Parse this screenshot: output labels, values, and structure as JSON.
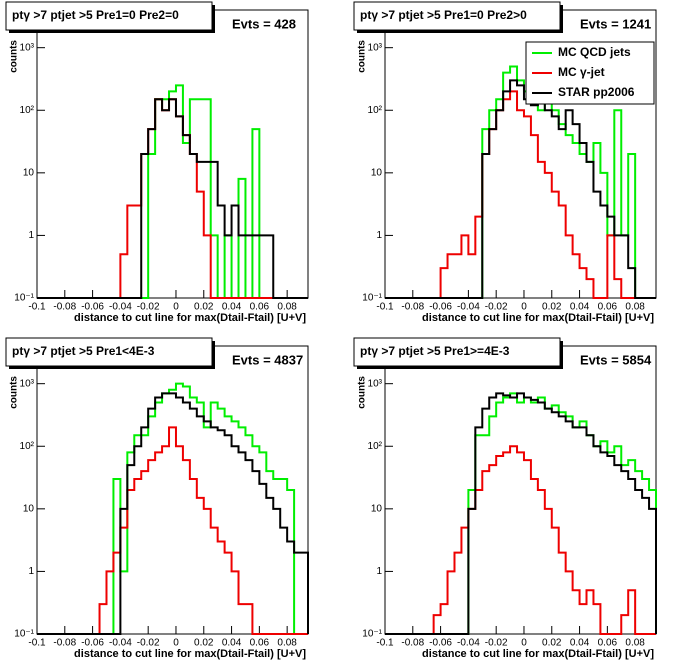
{
  "chart_data": [
    {
      "type": "histogram",
      "title": "ptγ >7  ptjet >5 Pre1=0 Pre2=0",
      "annotation": "Evts = 428",
      "xlabel": "distance to cut line for max(Dtail-Ftail) [U+V]",
      "ylabel": "counts",
      "log_y": true,
      "xlim": [
        -0.1,
        0.095
      ],
      "ylim": [
        0.1,
        4000
      ],
      "xticks": [
        -0.1,
        -0.08,
        -0.06,
        -0.04,
        -0.02,
        0,
        0.02,
        0.04,
        0.06,
        0.08
      ],
      "yticks": [
        {
          "value": 0.1,
          "label": "10⁻¹"
        },
        1,
        10,
        {
          "value": 100,
          "label": "10²"
        },
        {
          "value": 1000,
          "label": "10³"
        }
      ],
      "bins": [
        -0.1,
        -0.095,
        -0.09,
        -0.085,
        -0.08,
        -0.075,
        -0.07,
        -0.065,
        -0.06,
        -0.055,
        -0.05,
        -0.045,
        -0.04,
        -0.035,
        -0.03,
        -0.025,
        -0.02,
        -0.015,
        -0.01,
        -0.005,
        0,
        0.005,
        0.01,
        0.015,
        0.02,
        0.025,
        0.03,
        0.035,
        0.04,
        0.045,
        0.05,
        0.055,
        0.06,
        0.065,
        0.07,
        0.075,
        0.08,
        0.085,
        0.09,
        0.095
      ],
      "series": [
        {
          "color": "#00ee00",
          "values": [
            0,
            0,
            0,
            0,
            0,
            0,
            0,
            0,
            0,
            0,
            0,
            0,
            0,
            0,
            0,
            0,
            20,
            150,
            150,
            200,
            250,
            30,
            150,
            150,
            150,
            1,
            0.1,
            1,
            0.1,
            8,
            0.1,
            50,
            0.1,
            0,
            0,
            0,
            0,
            0,
            0
          ]
        },
        {
          "color": "#ee0000",
          "values": [
            0,
            0,
            0,
            0,
            0,
            0,
            0,
            0,
            0,
            0,
            0,
            0,
            0.5,
            3,
            3,
            20,
            50,
            150,
            100,
            150,
            80,
            40,
            20,
            5,
            1,
            0,
            0,
            0,
            0,
            0,
            0,
            0,
            0,
            0,
            0,
            0,
            0,
            0,
            0
          ]
        },
        {
          "color": "#000000",
          "values": [
            0,
            0,
            0,
            0,
            0,
            0,
            0,
            0,
            0,
            0,
            0,
            0,
            0,
            0,
            0,
            20,
            50,
            150,
            100,
            150,
            80,
            40,
            20,
            15,
            15,
            15,
            3,
            1,
            3,
            1,
            1,
            1,
            1,
            1,
            0,
            0,
            0,
            0,
            0
          ]
        }
      ]
    },
    {
      "type": "histogram",
      "title": "ptγ >7  ptjet >5 Pre1=0 Pre2>0",
      "annotation": "Evts = 1241",
      "xlabel": "distance to cut line for max(Dtail-Ftail) [U+V]",
      "ylabel": "counts",
      "log_y": true,
      "legend": "top-right",
      "xlim": [
        -0.1,
        0.095
      ],
      "ylim": [
        0.1,
        4000
      ],
      "xticks": [
        -0.1,
        -0.08,
        -0.06,
        -0.04,
        -0.02,
        0,
        0.02,
        0.04,
        0.06,
        0.08
      ],
      "yticks": [
        {
          "value": 0.1,
          "label": "10⁻¹"
        },
        1,
        10,
        {
          "value": 100,
          "label": "10²"
        },
        {
          "value": 1000,
          "label": "10³"
        }
      ],
      "bins": [
        -0.1,
        -0.095,
        -0.09,
        -0.085,
        -0.08,
        -0.075,
        -0.07,
        -0.065,
        -0.06,
        -0.055,
        -0.05,
        -0.045,
        -0.04,
        -0.035,
        -0.03,
        -0.025,
        -0.02,
        -0.015,
        -0.01,
        -0.005,
        0,
        0.005,
        0.01,
        0.015,
        0.02,
        0.025,
        0.03,
        0.035,
        0.04,
        0.045,
        0.05,
        0.055,
        0.06,
        0.065,
        0.07,
        0.075,
        0.08,
        0.085,
        0.09,
        0.095
      ],
      "series": [
        {
          "name": "MC QCD jets",
          "color": "#00ee00",
          "values": [
            0,
            0,
            0,
            0,
            0,
            0,
            0,
            0,
            0,
            0,
            0,
            0,
            0,
            0,
            50,
            100,
            150,
            400,
            500,
            300,
            200,
            150,
            100,
            150,
            100,
            60,
            40,
            30,
            20,
            15,
            30,
            10,
            1,
            100,
            1,
            20,
            0,
            0,
            0
          ]
        },
        {
          "name": "MC γ-jet",
          "color": "#ee0000",
          "values": [
            0,
            0,
            0,
            0,
            0,
            0,
            0,
            0,
            0.3,
            0.5,
            0.5,
            1,
            0.5,
            2,
            20,
            50,
            100,
            150,
            200,
            100,
            80,
            40,
            15,
            10,
            5,
            3,
            1,
            0.5,
            0.3,
            0.2,
            0,
            0,
            1,
            0.2,
            0,
            0,
            0,
            0,
            0
          ]
        },
        {
          "name": "STAR pp2006",
          "color": "#000000",
          "values": [
            0,
            0,
            0,
            0,
            0,
            0,
            0,
            0,
            0,
            0,
            0,
            0,
            0,
            0,
            20,
            50,
            100,
            200,
            300,
            250,
            150,
            120,
            150,
            100,
            80,
            50,
            100,
            60,
            30,
            15,
            5,
            3,
            2,
            1,
            1,
            0.3,
            0,
            0,
            0
          ]
        }
      ]
    },
    {
      "type": "histogram",
      "title": "ptγ >7  ptjet >5 Pre1<4E-3",
      "annotation": "Evts = 4837",
      "xlabel": "distance to cut line for max(Dtail-Ftail) [U+V]",
      "ylabel": "counts",
      "log_y": true,
      "xlim": [
        -0.1,
        0.095
      ],
      "ylim": [
        0.1,
        4000
      ],
      "xticks": [
        -0.1,
        -0.08,
        -0.06,
        -0.04,
        -0.02,
        0,
        0.02,
        0.04,
        0.06,
        0.08
      ],
      "yticks": [
        {
          "value": 0.1,
          "label": "10⁻¹"
        },
        1,
        10,
        {
          "value": 100,
          "label": "10²"
        },
        {
          "value": 1000,
          "label": "10³"
        }
      ],
      "bins": [
        -0.1,
        -0.095,
        -0.09,
        -0.085,
        -0.08,
        -0.075,
        -0.07,
        -0.065,
        -0.06,
        -0.055,
        -0.05,
        -0.045,
        -0.04,
        -0.035,
        -0.03,
        -0.025,
        -0.02,
        -0.015,
        -0.01,
        -0.005,
        0,
        0.005,
        0.01,
        0.015,
        0.02,
        0.025,
        0.03,
        0.035,
        0.04,
        0.045,
        0.05,
        0.055,
        0.06,
        0.065,
        0.07,
        0.075,
        0.08,
        0.085,
        0.09,
        0.095
      ],
      "series": [
        {
          "color": "#00ee00",
          "values": [
            0,
            0,
            0,
            0,
            0,
            0,
            0,
            0,
            0,
            0,
            0,
            30,
            1,
            80,
            150,
            150,
            300,
            500,
            700,
            800,
            1000,
            900,
            600,
            500,
            200,
            500,
            400,
            300,
            250,
            200,
            150,
            100,
            80,
            40,
            30,
            30,
            20,
            0,
            0
          ]
        },
        {
          "color": "#ee0000",
          "values": [
            0,
            0,
            0,
            0,
            0,
            0,
            0,
            0,
            0,
            0.3,
            1,
            2,
            5,
            20,
            30,
            40,
            60,
            80,
            100,
            200,
            100,
            60,
            30,
            15,
            10,
            5,
            3,
            2,
            1,
            0.3,
            0.3,
            0,
            0,
            0,
            0,
            0,
            0,
            0,
            0
          ]
        },
        {
          "color": "#000000",
          "values": [
            0,
            0,
            0,
            0,
            0,
            0,
            0,
            0,
            0,
            0,
            0,
            0,
            10,
            50,
            100,
            200,
            400,
            600,
            700,
            700,
            600,
            500,
            400,
            300,
            250,
            200,
            180,
            150,
            100,
            80,
            60,
            40,
            25,
            15,
            10,
            5,
            3,
            2,
            2
          ]
        }
      ]
    },
    {
      "type": "histogram",
      "title": "ptγ >7  ptjet >5 Pre1>=4E-3",
      "annotation": "Evts = 5854",
      "xlabel": "distance to cut line for max(Dtail-Ftail) [U+V]",
      "ylabel": "counts",
      "log_y": true,
      "xlim": [
        -0.1,
        0.095
      ],
      "ylim": [
        0.1,
        4000
      ],
      "xticks": [
        -0.1,
        -0.08,
        -0.06,
        -0.04,
        -0.02,
        0,
        0.02,
        0.04,
        0.06,
        0.08
      ],
      "yticks": [
        {
          "value": 0.1,
          "label": "10⁻¹"
        },
        1,
        10,
        {
          "value": 100,
          "label": "10²"
        },
        {
          "value": 1000,
          "label": "10³"
        }
      ],
      "bins": [
        -0.1,
        -0.095,
        -0.09,
        -0.085,
        -0.08,
        -0.075,
        -0.07,
        -0.065,
        -0.06,
        -0.055,
        -0.05,
        -0.045,
        -0.04,
        -0.035,
        -0.03,
        -0.025,
        -0.02,
        -0.015,
        -0.01,
        -0.005,
        0,
        0.005,
        0.01,
        0.015,
        0.02,
        0.025,
        0.03,
        0.035,
        0.04,
        0.045,
        0.05,
        0.055,
        0.06,
        0.065,
        0.07,
        0.075,
        0.08,
        0.085,
        0.09,
        0.095
      ],
      "series": [
        {
          "color": "#00ee00",
          "values": [
            0,
            0,
            0,
            0,
            0,
            0,
            0,
            0,
            0,
            0,
            0,
            0,
            20,
            150,
            150,
            300,
            500,
            600,
            700,
            500,
            600,
            500,
            600,
            400,
            450,
            350,
            300,
            200,
            250,
            150,
            100,
            120,
            80,
            100,
            50,
            60,
            40,
            30,
            20
          ]
        },
        {
          "color": "#ee0000",
          "values": [
            0,
            0,
            0,
            0,
            0,
            0,
            0,
            0.2,
            0.3,
            1,
            2,
            5,
            10,
            20,
            40,
            50,
            70,
            80,
            100,
            80,
            60,
            30,
            20,
            10,
            5,
            2,
            1,
            0.5,
            0.3,
            0.5,
            0.3,
            0,
            0,
            0,
            0.2,
            0.5,
            0,
            0,
            0
          ]
        },
        {
          "color": "#000000",
          "values": [
            0,
            0,
            0,
            0,
            0,
            0,
            0,
            0,
            0,
            0,
            0,
            0,
            10,
            200,
            400,
            600,
            700,
            650,
            600,
            700,
            600,
            550,
            500,
            400,
            350,
            300,
            250,
            200,
            200,
            150,
            100,
            80,
            70,
            50,
            40,
            30,
            20,
            15,
            10
          ]
        }
      ]
    }
  ]
}
